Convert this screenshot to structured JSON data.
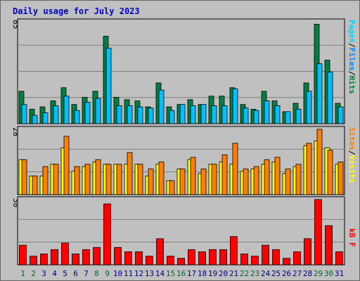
{
  "title": "Daily usage for July 2023",
  "colors": {
    "background": "#c0c0c0",
    "title": "#0000cc",
    "hits": "#008040",
    "files": "#00c0ff",
    "pages": "#00d8ff",
    "visits": "#ffff00",
    "sites": "#ff8000",
    "kbf": "#ff0000",
    "weekend_label": "#006633",
    "weekday_label": "#000080"
  },
  "chart_data": [
    {
      "type": "bar",
      "title": "Daily usage for July 2023",
      "panel": "hits",
      "ymax_label": "85",
      "ylim": [
        0,
        85
      ],
      "right_label_parts": [
        "Pages",
        "/",
        "Files",
        "/",
        "Hits"
      ],
      "categories": [
        "1",
        "2",
        "3",
        "4",
        "5",
        "6",
        "7",
        "8",
        "9",
        "10",
        "11",
        "12",
        "13",
        "14",
        "15",
        "16",
        "17",
        "18",
        "19",
        "20",
        "21",
        "22",
        "23",
        "24",
        "25",
        "26",
        "27",
        "28",
        "29",
        "30",
        "31"
      ],
      "series": [
        {
          "name": "Hits",
          "values": [
            27,
            12,
            14,
            19,
            30,
            16,
            22,
            27,
            73,
            22,
            20,
            19,
            14,
            34,
            14,
            16,
            20,
            16,
            23,
            23,
            30,
            16,
            12,
            27,
            19,
            10,
            17,
            34,
            83,
            53,
            17
          ]
        },
        {
          "name": "Files",
          "values": [
            16,
            7,
            9,
            15,
            23,
            11,
            18,
            21,
            63,
            15,
            15,
            14,
            13,
            28,
            11,
            16,
            15,
            16,
            15,
            15,
            29,
            13,
            11,
            19,
            15,
            10,
            12,
            27,
            50,
            43,
            14
          ]
        }
      ],
      "weekend_days": [
        1,
        2,
        8,
        9,
        15,
        16,
        22,
        23,
        29,
        30
      ]
    },
    {
      "type": "bar",
      "panel": "visits",
      "ymax_label": "28",
      "ylim": [
        0,
        28
      ],
      "right_label_parts": [
        "Sites",
        "/",
        "Visits"
      ],
      "categories": [
        "1",
        "2",
        "3",
        "4",
        "5",
        "6",
        "7",
        "8",
        "9",
        "10",
        "11",
        "12",
        "13",
        "14",
        "15",
        "16",
        "17",
        "18",
        "19",
        "20",
        "21",
        "22",
        "23",
        "24",
        "25",
        "26",
        "27",
        "28",
        "29",
        "30",
        "31"
      ],
      "series": [
        {
          "name": "Visits",
          "values": [
            15,
            8,
            8,
            13,
            20,
            10,
            12,
            14,
            13,
            13,
            13,
            13,
            8,
            13,
            6,
            11,
            15,
            9,
            13,
            14,
            13,
            10,
            11,
            13,
            14,
            9,
            12,
            21,
            23,
            20,
            13
          ]
        },
        {
          "name": "Sites",
          "values": [
            15,
            8,
            12,
            13,
            25,
            12,
            13,
            15,
            13,
            13,
            18,
            13,
            11,
            14,
            6,
            11,
            16,
            11,
            13,
            17,
            22,
            11,
            12,
            15,
            16,
            11,
            13,
            22,
            28,
            19,
            14
          ]
        }
      ]
    },
    {
      "type": "bar",
      "panel": "kbf",
      "ymax_label": "30",
      "ylim": [
        0,
        30
      ],
      "right_label_parts": [
        "kB",
        "F"
      ],
      "categories": [
        "1",
        "2",
        "3",
        "4",
        "5",
        "6",
        "7",
        "8",
        "9",
        "10",
        "11",
        "12",
        "13",
        "14",
        "15",
        "16",
        "17",
        "18",
        "19",
        "20",
        "21",
        "22",
        "23",
        "24",
        "25",
        "26",
        "27",
        "28",
        "29",
        "30",
        "31"
      ],
      "series": [
        {
          "name": "kB F",
          "values": [
            9,
            4,
            5,
            7,
            10,
            5,
            7,
            8,
            28,
            8,
            6,
            6,
            4,
            12,
            4,
            3,
            7,
            6,
            7,
            7,
            13,
            5,
            4,
            9,
            7,
            3,
            6,
            12,
            30,
            18,
            6
          ]
        }
      ]
    }
  ]
}
